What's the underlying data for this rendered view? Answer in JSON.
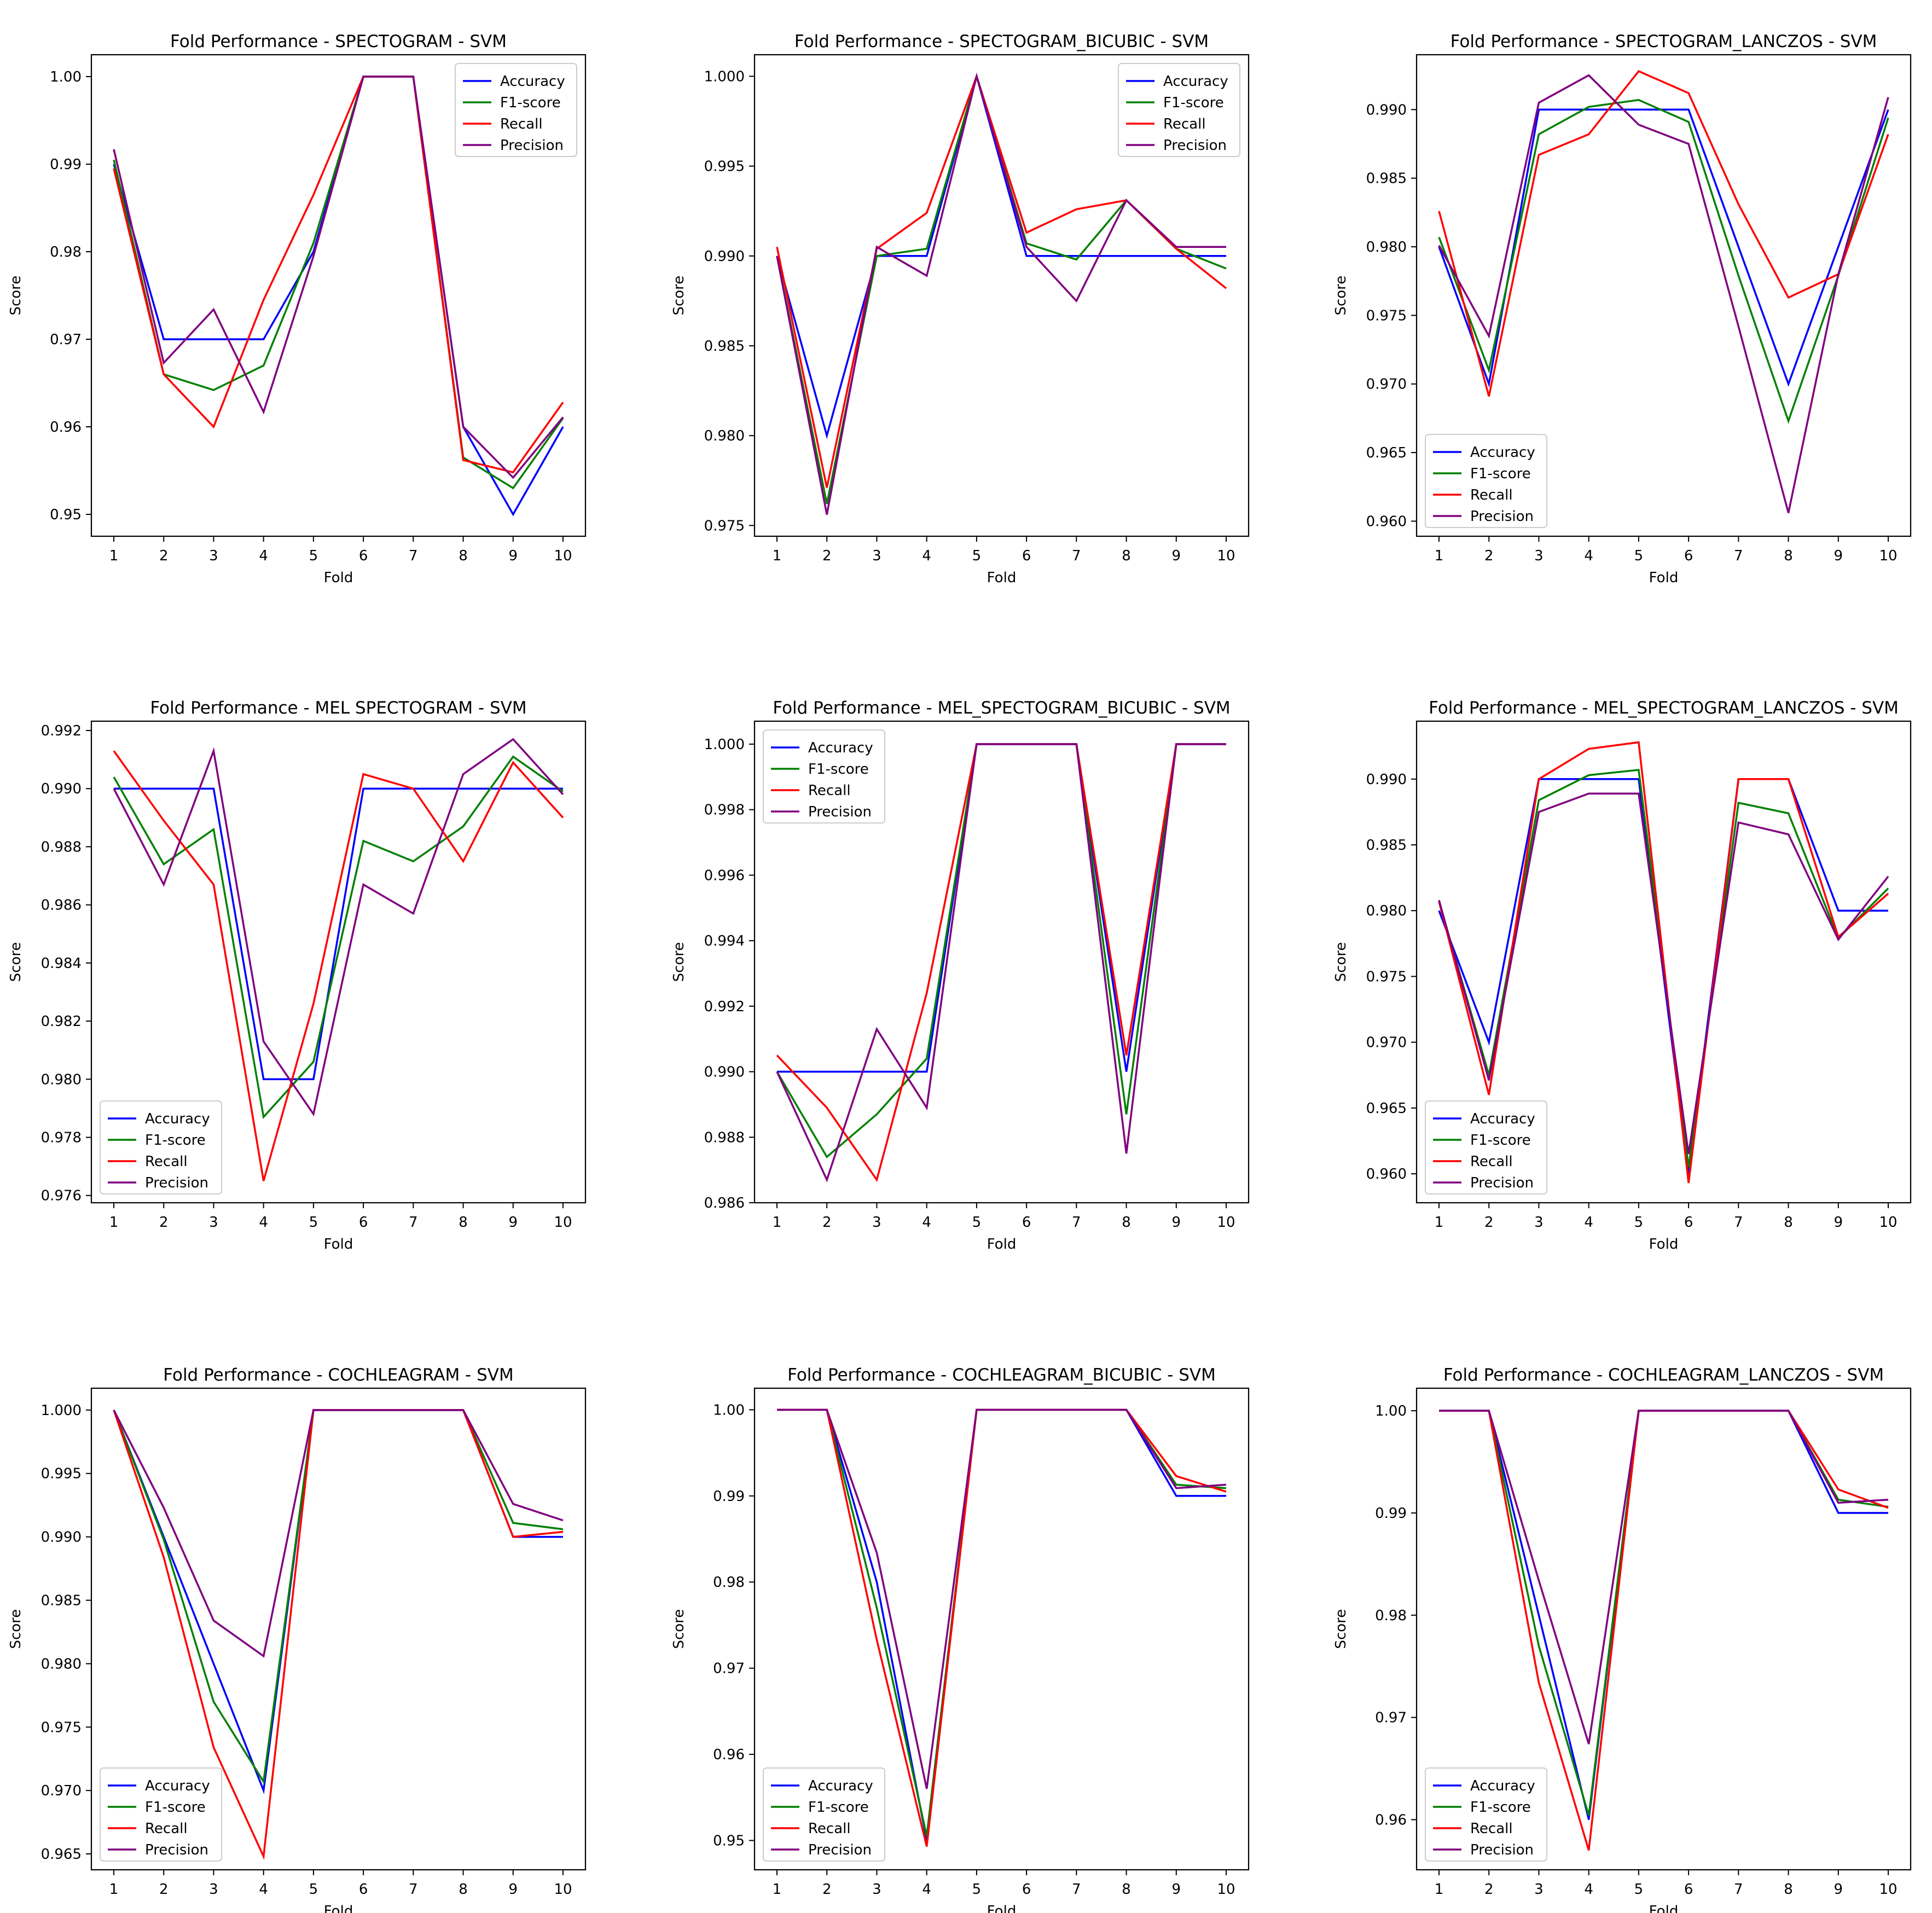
{
  "chart_data": [
    {
      "type": "line",
      "title": "Fold Performance - SPECTOGRAM - SVM",
      "xlabel": "Fold",
      "ylabel": "Score",
      "x": [
        1,
        2,
        3,
        4,
        5,
        6,
        7,
        8,
        9,
        10
      ],
      "ylim": [
        0.9475,
        1.0025
      ],
      "yticks": [
        "0.95",
        "0.96",
        "0.97",
        "0.98",
        "0.99",
        "1.00"
      ],
      "legend": "top-right",
      "series": [
        {
          "name": "Accuracy",
          "color": "#0000ff",
          "values": [
            0.99,
            0.97,
            0.97,
            0.97,
            0.98,
            1.0,
            1.0,
            0.96,
            0.95,
            0.96
          ]
        },
        {
          "name": "F1-score",
          "color": "#008000",
          "values": [
            0.9905,
            0.966,
            0.9642,
            0.967,
            0.981,
            1.0,
            1.0,
            0.9565,
            0.953,
            0.961
          ]
        },
        {
          "name": "Recall",
          "color": "#ff0000",
          "values": [
            0.9895,
            0.966,
            0.96,
            0.9745,
            0.9865,
            1.0,
            1.0,
            0.9562,
            0.9548,
            0.9628
          ]
        },
        {
          "name": "Precision",
          "color": "#800080",
          "values": [
            0.9917,
            0.9673,
            0.9734,
            0.9617,
            0.9795,
            1.0,
            1.0,
            0.96,
            0.9542,
            0.9611
          ]
        }
      ]
    },
    {
      "type": "line",
      "title": "Fold Performance - SPECTOGRAM_BICUBIC - SVM",
      "xlabel": "Fold",
      "ylabel": "Score",
      "x": [
        1,
        2,
        3,
        4,
        5,
        6,
        7,
        8,
        9,
        10
      ],
      "ylim": [
        0.9744,
        1.0012
      ],
      "yticks": [
        "0.975",
        "0.980",
        "0.985",
        "0.990",
        "0.995",
        "1.000"
      ],
      "legend": "top-right",
      "series": [
        {
          "name": "Accuracy",
          "color": "#0000ff",
          "values": [
            0.99,
            0.98,
            0.99,
            0.99,
            1.0,
            0.99,
            0.99,
            0.99,
            0.99,
            0.99
          ]
        },
        {
          "name": "F1-score",
          "color": "#008000",
          "values": [
            0.99,
            0.9762,
            0.99,
            0.9904,
            1.0,
            0.9907,
            0.9898,
            0.9931,
            0.9904,
            0.9893
          ]
        },
        {
          "name": "Recall",
          "color": "#ff0000",
          "values": [
            0.9905,
            0.9771,
            0.9904,
            0.9924,
            1.0,
            0.9913,
            0.9926,
            0.9931,
            0.9904,
            0.9882
          ]
        },
        {
          "name": "Precision",
          "color": "#800080",
          "values": [
            0.99,
            0.9756,
            0.9905,
            0.9889,
            1.0,
            0.9905,
            0.9875,
            0.9931,
            0.9905,
            0.9905
          ]
        }
      ]
    },
    {
      "type": "line",
      "title": "Fold Performance - SPECTOGRAM_LANCZOS - SVM",
      "xlabel": "Fold",
      "ylabel": "Score",
      "x": [
        1,
        2,
        3,
        4,
        5,
        6,
        7,
        8,
        9,
        10
      ],
      "ylim": [
        0.9589,
        0.994
      ],
      "yticks": [
        "0.960",
        "0.965",
        "0.970",
        "0.975",
        "0.980",
        "0.985",
        "0.990"
      ],
      "legend": "bottom-left",
      "series": [
        {
          "name": "Accuracy",
          "color": "#0000ff",
          "values": [
            0.98,
            0.97,
            0.99,
            0.99,
            0.99,
            0.99,
            0.98,
            0.97,
            0.98,
            0.99
          ]
        },
        {
          "name": "F1-score",
          "color": "#008000",
          "values": [
            0.9807,
            0.971,
            0.9882,
            0.9902,
            0.9907,
            0.9891,
            0.9779,
            0.9673,
            0.9779,
            0.9894
          ]
        },
        {
          "name": "Recall",
          "color": "#ff0000",
          "values": [
            0.9826,
            0.9691,
            0.9867,
            0.9882,
            0.9928,
            0.9912,
            0.9831,
            0.9763,
            0.978,
            0.9882
          ]
        },
        {
          "name": "Precision",
          "color": "#800080",
          "values": [
            0.9801,
            0.9735,
            0.9905,
            0.9925,
            0.9889,
            0.9875,
            0.9742,
            0.9606,
            0.978,
            0.9909
          ]
        }
      ]
    },
    {
      "type": "line",
      "title": "Fold Performance - MEL SPECTOGRAM - SVM",
      "xlabel": "Fold",
      "ylabel": "Score",
      "x": [
        1,
        2,
        3,
        4,
        5,
        6,
        7,
        8,
        9,
        10
      ],
      "ylim": [
        0.97575,
        0.99232
      ],
      "yticks": [
        "0.976",
        "0.978",
        "0.980",
        "0.982",
        "0.984",
        "0.986",
        "0.988",
        "0.990",
        "0.992"
      ],
      "legend": "bottom-left",
      "series": [
        {
          "name": "Accuracy",
          "color": "#0000ff",
          "values": [
            0.99,
            0.99,
            0.99,
            0.98,
            0.98,
            0.99,
            0.99,
            0.99,
            0.99,
            0.99
          ]
        },
        {
          "name": "F1-score",
          "color": "#008000",
          "values": [
            0.9904,
            0.9874,
            0.9886,
            0.9787,
            0.9806,
            0.9882,
            0.9875,
            0.9887,
            0.9911,
            0.9899
          ]
        },
        {
          "name": "Recall",
          "color": "#ff0000",
          "values": [
            0.9913,
            0.9889,
            0.9867,
            0.9765,
            0.9826,
            0.9905,
            0.99,
            0.9875,
            0.9909,
            0.989
          ]
        },
        {
          "name": "Precision",
          "color": "#800080",
          "values": [
            0.99,
            0.9867,
            0.9913,
            0.9813,
            0.9788,
            0.9867,
            0.9857,
            0.9905,
            0.9917,
            0.9898
          ]
        }
      ]
    },
    {
      "type": "line",
      "title": "Fold Performance - MEL_SPECTOGRAM_BICUBIC - SVM",
      "xlabel": "Fold",
      "ylabel": "Score",
      "x": [
        1,
        2,
        3,
        4,
        5,
        6,
        7,
        8,
        9,
        10
      ],
      "ylim": [
        0.986,
        1.0007
      ],
      "yticks": [
        "0.986",
        "0.988",
        "0.990",
        "0.992",
        "0.994",
        "0.996",
        "0.998",
        "1.000"
      ],
      "legend": "top-left",
      "series": [
        {
          "name": "Accuracy",
          "color": "#0000ff",
          "values": [
            0.99,
            0.99,
            0.99,
            0.99,
            1.0,
            1.0,
            1.0,
            0.99,
            1.0,
            1.0
          ]
        },
        {
          "name": "F1-score",
          "color": "#008000",
          "values": [
            0.99,
            0.9874,
            0.9887,
            0.9904,
            1.0,
            1.0,
            1.0,
            0.9887,
            1.0,
            1.0
          ]
        },
        {
          "name": "Recall",
          "color": "#ff0000",
          "values": [
            0.9905,
            0.9889,
            0.9867,
            0.9924,
            1.0,
            1.0,
            1.0,
            0.9905,
            1.0,
            1.0
          ]
        },
        {
          "name": "Precision",
          "color": "#800080",
          "values": [
            0.99,
            0.9867,
            0.9913,
            0.9889,
            1.0,
            1.0,
            1.0,
            0.9875,
            1.0,
            1.0
          ]
        }
      ]
    },
    {
      "type": "line",
      "title": "Fold Performance - MEL_SPECTOGRAM_LANCZOS - SVM",
      "xlabel": "Fold",
      "ylabel": "Score",
      "x": [
        1,
        2,
        3,
        4,
        5,
        6,
        7,
        8,
        9,
        10
      ],
      "ylim": [
        0.9578,
        0.9944
      ],
      "yticks": [
        "0.960",
        "0.965",
        "0.970",
        "0.975",
        "0.980",
        "0.985",
        "0.990"
      ],
      "legend": "bottom-left",
      "series": [
        {
          "name": "Accuracy",
          "color": "#0000ff",
          "values": [
            0.98,
            0.97,
            0.99,
            0.99,
            0.99,
            0.96,
            0.99,
            0.99,
            0.98,
            0.98
          ]
        },
        {
          "name": "F1-score",
          "color": "#008000",
          "values": [
            0.9807,
            0.9675,
            0.9884,
            0.9903,
            0.9907,
            0.9605,
            0.9882,
            0.9874,
            0.9779,
            0.9817
          ]
        },
        {
          "name": "Recall",
          "color": "#ff0000",
          "values": [
            0.9807,
            0.966,
            0.99,
            0.9923,
            0.9928,
            0.9593,
            0.99,
            0.99,
            0.978,
            0.9813
          ]
        },
        {
          "name": "Precision",
          "color": "#800080",
          "values": [
            0.9808,
            0.9671,
            0.9875,
            0.9889,
            0.9889,
            0.9615,
            0.9867,
            0.9858,
            0.9778,
            0.9826
          ]
        }
      ]
    },
    {
      "type": "line",
      "title": "Fold Performance - COCHLEAGRAM - SVM",
      "xlabel": "Fold",
      "ylabel": "Score",
      "x": [
        1,
        2,
        3,
        4,
        5,
        6,
        7,
        8,
        9,
        10
      ],
      "ylim": [
        0.96375,
        1.00172
      ],
      "yticks": [
        "0.965",
        "0.970",
        "0.975",
        "0.980",
        "0.985",
        "0.990",
        "0.995",
        "1.000"
      ],
      "legend": "bottom-left",
      "series": [
        {
          "name": "Accuracy",
          "color": "#0000ff",
          "values": [
            1.0,
            0.99,
            0.98,
            0.97,
            1.0,
            1.0,
            1.0,
            1.0,
            0.99,
            0.99
          ]
        },
        {
          "name": "F1-score",
          "color": "#008000",
          "values": [
            1.0,
            0.9898,
            0.977,
            0.9707,
            1.0,
            1.0,
            1.0,
            1.0,
            0.9911,
            0.9906
          ]
        },
        {
          "name": "Recall",
          "color": "#ff0000",
          "values": [
            1.0,
            0.9884,
            0.9734,
            0.9648,
            1.0,
            1.0,
            1.0,
            1.0,
            0.99,
            0.9904
          ]
        },
        {
          "name": "Precision",
          "color": "#800080",
          "values": [
            1.0,
            0.9923,
            0.9834,
            0.9806,
            1.0,
            1.0,
            1.0,
            1.0,
            0.9926,
            0.9913
          ]
        }
      ]
    },
    {
      "type": "line",
      "title": "Fold Performance - COCHLEAGRAM_BICUBIC - SVM",
      "xlabel": "Fold",
      "ylabel": "Score",
      "x": [
        1,
        2,
        3,
        4,
        5,
        6,
        7,
        8,
        9,
        10
      ],
      "ylim": [
        0.9466,
        1.0025
      ],
      "yticks": [
        "0.95",
        "0.96",
        "0.97",
        "0.98",
        "0.99",
        "1.00"
      ],
      "legend": "bottom-left",
      "series": [
        {
          "name": "Accuracy",
          "color": "#0000ff",
          "values": [
            1.0,
            1.0,
            0.98,
            0.95,
            1.0,
            1.0,
            1.0,
            1.0,
            0.99,
            0.99
          ]
        },
        {
          "name": "F1-score",
          "color": "#008000",
          "values": [
            1.0,
            1.0,
            0.977,
            0.9505,
            1.0,
            1.0,
            1.0,
            1.0,
            0.9913,
            0.9909
          ]
        },
        {
          "name": "Recall",
          "color": "#ff0000",
          "values": [
            1.0,
            1.0,
            0.9733,
            0.9493,
            1.0,
            1.0,
            1.0,
            1.0,
            0.9923,
            0.9905
          ]
        },
        {
          "name": "Precision",
          "color": "#800080",
          "values": [
            1.0,
            1.0,
            0.9834,
            0.956,
            1.0,
            1.0,
            1.0,
            1.0,
            0.9909,
            0.9913
          ]
        }
      ]
    },
    {
      "type": "line",
      "title": "Fold Performance - COCHLEAGRAM_LANCZOS - SVM",
      "xlabel": "Fold",
      "ylabel": "Score",
      "x": [
        1,
        2,
        3,
        4,
        5,
        6,
        7,
        8,
        9,
        10
      ],
      "ylim": [
        0.9551,
        1.0022
      ],
      "yticks": [
        "0.96",
        "0.97",
        "0.98",
        "0.99",
        "1.00"
      ],
      "legend": "bottom-left",
      "series": [
        {
          "name": "Accuracy",
          "color": "#0000ff",
          "values": [
            1.0,
            1.0,
            0.98,
            0.96,
            1.0,
            1.0,
            1.0,
            1.0,
            0.99,
            0.99
          ]
        },
        {
          "name": "F1-score",
          "color": "#008000",
          "values": [
            1.0,
            1.0,
            0.977,
            0.9604,
            1.0,
            1.0,
            1.0,
            1.0,
            0.9913,
            0.9906
          ]
        },
        {
          "name": "Recall",
          "color": "#ff0000",
          "values": [
            1.0,
            1.0,
            0.9734,
            0.957,
            1.0,
            1.0,
            1.0,
            1.0,
            0.9923,
            0.9905
          ]
        },
        {
          "name": "Precision",
          "color": "#800080",
          "values": [
            1.0,
            1.0,
            0.9834,
            0.9674,
            1.0,
            1.0,
            1.0,
            1.0,
            0.991,
            0.9913
          ]
        }
      ]
    }
  ]
}
